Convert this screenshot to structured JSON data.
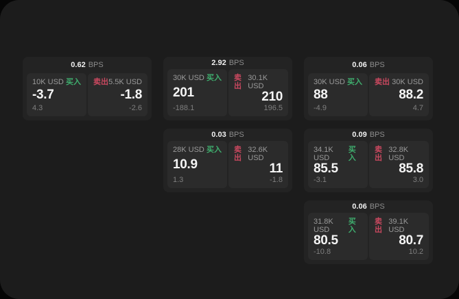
{
  "labels": {
    "buy": "买入",
    "sell": "卖出",
    "bps": "BPS"
  },
  "colors": {
    "buy_green": "#3fae6e",
    "sell_red": "#c9485f",
    "surface": "#1c1c1c",
    "card": "#232323",
    "panel": "#2b2b2b"
  },
  "cards": [
    {
      "bps": "0.62",
      "buy": {
        "notional": "10K USD",
        "value": "-3.7",
        "sub": "4.3"
      },
      "sell": {
        "notional": "5.5K USD",
        "value": "-1.8",
        "sub": "-2.6"
      }
    },
    {
      "bps": "2.92",
      "buy": {
        "notional": "30K USD",
        "value": "201",
        "sub": "-188.1"
      },
      "sell": {
        "notional": "30.1K USD",
        "value": "210",
        "sub": "196.5"
      }
    },
    {
      "bps": "0.06",
      "buy": {
        "notional": "30K USD",
        "value": "88",
        "sub": "-4.9"
      },
      "sell": {
        "notional": "30K USD",
        "value": "88.2",
        "sub": "4.7"
      }
    },
    {
      "bps": "0.03",
      "buy": {
        "notional": "28K USD",
        "value": "10.9",
        "sub": "1.3"
      },
      "sell": {
        "notional": "32.6K USD",
        "value": "11",
        "sub": "-1.8"
      }
    },
    {
      "bps": "0.09",
      "buy": {
        "notional": "34.1K USD",
        "value": "85.5",
        "sub": "-3.1"
      },
      "sell": {
        "notional": "32.8K USD",
        "value": "85.8",
        "sub": "3.0"
      }
    },
    {
      "bps": "0.06",
      "buy": {
        "notional": "31.8K USD",
        "value": "80.5",
        "sub": "-10.8"
      },
      "sell": {
        "notional": "39.1K USD",
        "value": "80.7",
        "sub": "10.2"
      }
    }
  ]
}
